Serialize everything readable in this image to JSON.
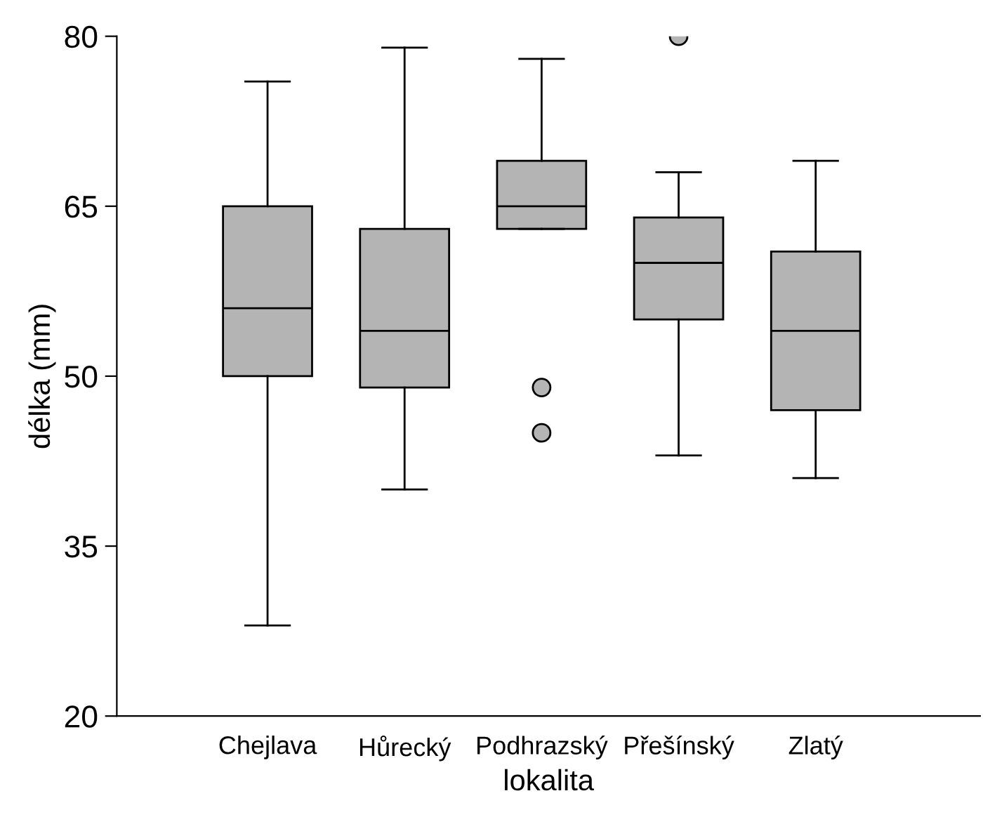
{
  "chart_data": {
    "type": "box",
    "xlabel": "lokalita",
    "ylabel": "délka (mm)",
    "categories": [
      "Chejlava",
      "Hůrecký",
      "Podhrazský",
      "Přešínský",
      "Zlatý"
    ],
    "color": "#b4b4b4",
    "boxes": [
      {
        "low": 28,
        "q1": 50,
        "median": 56,
        "q3": 65,
        "high": 76
      },
      {
        "low": 40,
        "q1": 49,
        "median": 54,
        "q3": 63,
        "high": 79
      },
      {
        "low": 63,
        "q1": 63,
        "median": 65,
        "q3": 69,
        "high": 78,
        "outliers": [
          49,
          45
        ]
      },
      {
        "low": 43,
        "q1": 55,
        "median": 60,
        "q3": 64,
        "high": 68,
        "outliers": [
          80
        ]
      },
      {
        "low": 41,
        "q1": 47,
        "median": 54,
        "q3": 61,
        "high": 69
      }
    ],
    "ylim": [
      20,
      80
    ],
    "yticks": [
      20,
      35,
      50,
      65,
      80
    ],
    "grid": false,
    "legend": false
  }
}
